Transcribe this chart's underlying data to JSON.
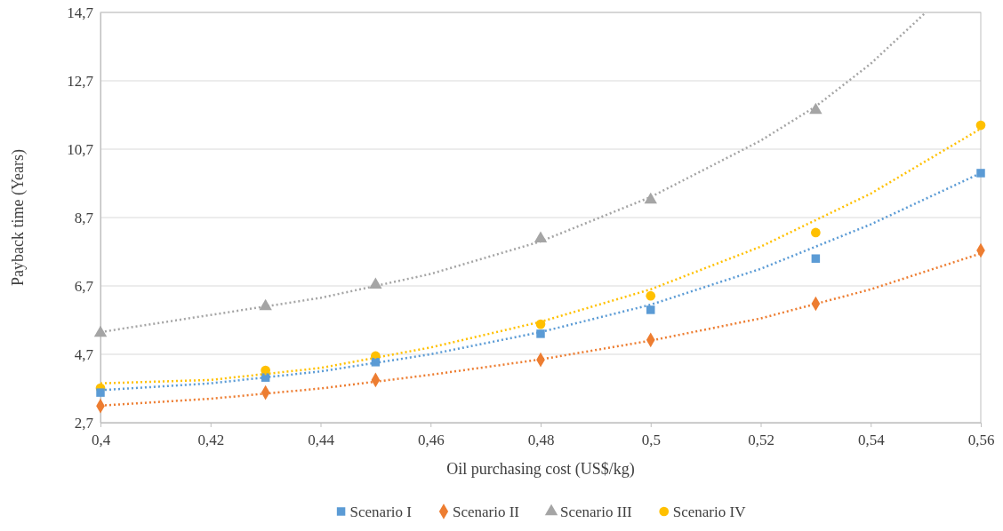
{
  "chart_data": {
    "type": "scatter",
    "xlabel": "Oil purchasing cost (US$/kg)",
    "ylabel": "Payback time  (Years)",
    "x": [
      0.4,
      0.43,
      0.45,
      0.48,
      0.5,
      0.53,
      0.56
    ],
    "xlim": [
      0.4,
      0.56
    ],
    "xticks": [
      {
        "value": 0.4,
        "label": "0,4"
      },
      {
        "value": 0.42,
        "label": "0,42"
      },
      {
        "value": 0.44,
        "label": "0,44"
      },
      {
        "value": 0.46,
        "label": "0,46"
      },
      {
        "value": 0.48,
        "label": "0,48"
      },
      {
        "value": 0.5,
        "label": "0,5"
      },
      {
        "value": 0.52,
        "label": "0,52"
      },
      {
        "value": 0.54,
        "label": "0,54"
      },
      {
        "value": 0.56,
        "label": "0,56"
      }
    ],
    "ylim": [
      2.7,
      14.7
    ],
    "yticks": [
      {
        "value": 2.7,
        "label": "2,7"
      },
      {
        "value": 4.7,
        "label": "4,7"
      },
      {
        "value": 6.7,
        "label": "6,7"
      },
      {
        "value": 8.7,
        "label": "8,7"
      },
      {
        "value": 10.7,
        "label": "10,7"
      },
      {
        "value": 12.7,
        "label": "12,7"
      },
      {
        "value": 14.7,
        "label": "14,7"
      }
    ],
    "grid": "y",
    "legend": "bottom",
    "series": [
      {
        "type": "line",
        "color": "#5b9bd5",
        "line_style": "dotted",
        "marker": "none",
        "x": [
          0.4,
          0.42,
          0.44,
          0.46,
          0.48,
          0.5,
          0.52,
          0.54,
          0.56
        ],
        "values": [
          3.65,
          3.85,
          4.2,
          4.7,
          5.35,
          6.15,
          7.2,
          8.5,
          10.0
        ]
      },
      {
        "type": "line",
        "color": "#ed7d31",
        "line_style": "dotted",
        "marker": "none",
        "x": [
          0.4,
          0.42,
          0.44,
          0.46,
          0.48,
          0.5,
          0.52,
          0.54,
          0.56
        ],
        "values": [
          3.2,
          3.4,
          3.7,
          4.1,
          4.55,
          5.1,
          5.75,
          6.6,
          7.65
        ]
      },
      {
        "type": "line",
        "color": "#a5a5a5",
        "line_style": "dotted",
        "marker": "none",
        "x": [
          0.4,
          0.42,
          0.44,
          0.46,
          0.48,
          0.5,
          0.52,
          0.53,
          0.54,
          0.55
        ],
        "values": [
          5.35,
          5.85,
          6.35,
          7.05,
          8.0,
          9.3,
          10.95,
          11.95,
          13.2,
          14.7
        ]
      },
      {
        "type": "line",
        "color": "#ffc000",
        "line_style": "dotted",
        "marker": "none",
        "x": [
          0.4,
          0.42,
          0.44,
          0.46,
          0.48,
          0.5,
          0.52,
          0.54,
          0.56
        ],
        "values": [
          3.85,
          3.95,
          4.3,
          4.9,
          5.65,
          6.6,
          7.85,
          9.4,
          11.3
        ]
      },
      {
        "name": "Scenario I",
        "color": "#5b9bd5",
        "marker": "square",
        "values": [
          3.58,
          4.02,
          4.47,
          5.3,
          6.0,
          7.5,
          10.0
        ]
      },
      {
        "name": "Scenario II",
        "color": "#ed7d31",
        "marker": "diamond",
        "values": [
          3.19,
          3.58,
          3.95,
          4.54,
          5.12,
          6.18,
          7.74
        ]
      },
      {
        "name": "Scenario III",
        "color": "#a5a5a5",
        "marker": "triangle",
        "values": [
          5.32,
          6.1,
          6.73,
          8.08,
          9.22,
          11.84,
          null
        ]
      },
      {
        "name": "Scenario IV",
        "color": "#ffc000",
        "marker": "circle",
        "values": [
          3.71,
          4.23,
          4.65,
          5.58,
          6.41,
          8.26,
          11.4
        ]
      }
    ]
  }
}
